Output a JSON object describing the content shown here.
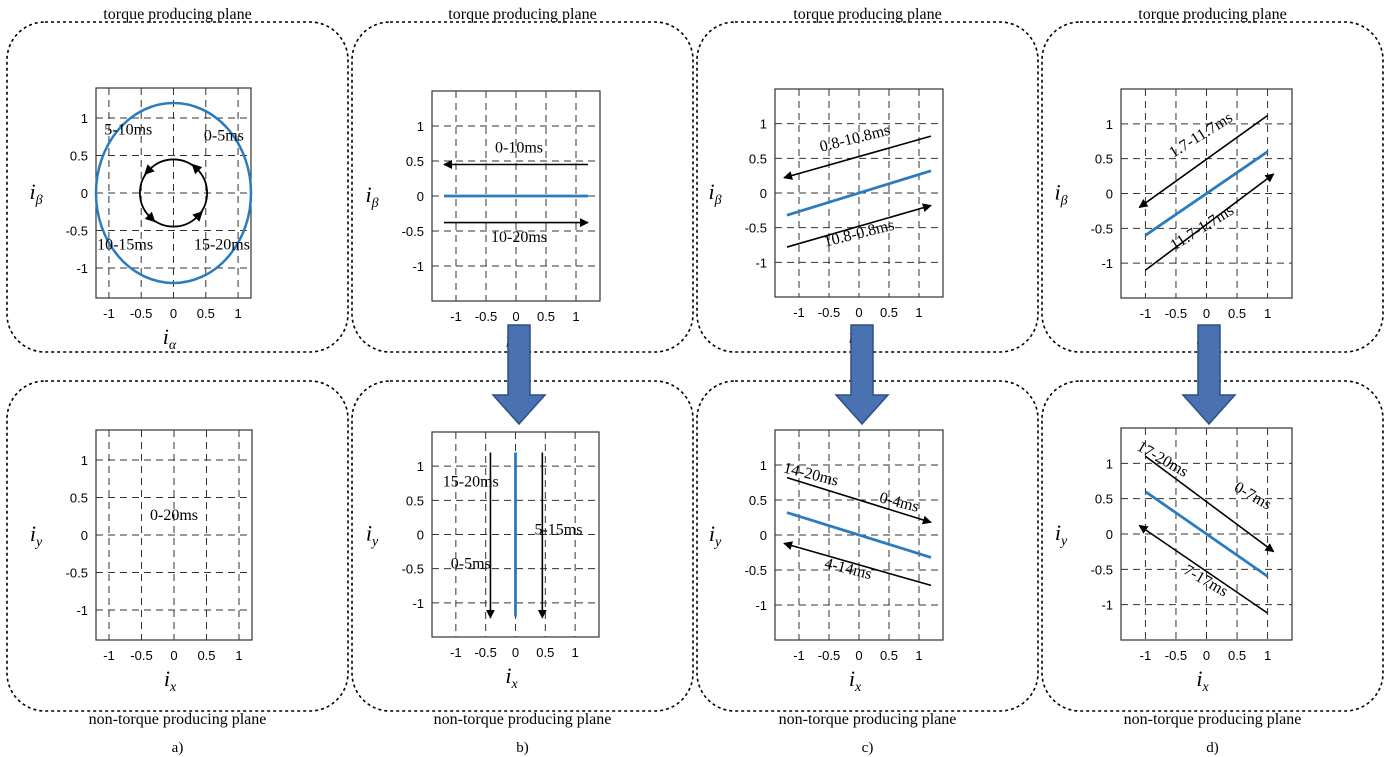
{
  "colors": {
    "trajectory": "#2b7bbf",
    "arrow": "#000000",
    "block_arrow_fill": "#4a72b0",
    "block_arrow_stroke": "#2f4f80",
    "grid": "#333333"
  },
  "chart_data": {
    "type": "scatter",
    "panels": [
      {
        "label": "a)",
        "top": {
          "title": "torque producing plane",
          "xlabel": "i",
          "xsub": "α",
          "ylabel": "i",
          "ysub": "β",
          "xlim": [
            -1.2,
            1.2
          ],
          "ylim": [
            -1.4,
            1.4
          ],
          "xticks": [
            "-1",
            "-0.5",
            "0",
            "0.5",
            "1"
          ],
          "yticks": [
            "1",
            "0.5",
            "0",
            "-0.5",
            "-1"
          ],
          "trajectory": {
            "kind": "circle",
            "center": [
              0,
              0
            ],
            "radius": 1.2
          },
          "rotation": {
            "kind": "circular_arrow",
            "center": [
              0,
              0
            ],
            "radius": 0.52
          },
          "annotations": [
            "5-10ms",
            "0-5ms",
            "10-15ms",
            "15-20ms"
          ]
        },
        "bottom": {
          "title": "non-torque producing plane",
          "xlabel": "i",
          "xsub": "x",
          "ylabel": "i",
          "ysub": "y",
          "xlim": [
            -1.2,
            1.2
          ],
          "ylim": [
            -1.4,
            1.4
          ],
          "xticks": [
            "-1",
            "-0.5",
            "0",
            "0.5",
            "1"
          ],
          "yticks": [
            "1",
            "0.5",
            "0",
            "-0.5",
            "-1"
          ],
          "trajectory": null,
          "annotations": [
            "0-20ms"
          ]
        }
      },
      {
        "label": "b)",
        "top": {
          "title": "torque producing plane",
          "xlabel": "i",
          "xsub": "α",
          "ylabel": "i",
          "ysub": "β",
          "xlim": [
            -1.4,
            1.4
          ],
          "ylim": [
            -1.5,
            1.5
          ],
          "xticks": [
            "-1",
            "-0.5",
            "0",
            "0.5",
            "1"
          ],
          "yticks": [
            "1",
            "0.5",
            "0",
            "-0.5",
            "-1"
          ],
          "trajectory": {
            "kind": "line",
            "from": [
              -1.2,
              0
            ],
            "to": [
              1.2,
              0
            ]
          },
          "arrows": [
            {
              "from": [
                1.2,
                0.45
              ],
              "to": [
                -1.2,
                0.45
              ]
            },
            {
              "from": [
                -1.2,
                -0.38
              ],
              "to": [
                1.2,
                -0.38
              ]
            }
          ],
          "annotations": [
            "0-10ms",
            "10-20ms"
          ]
        },
        "bottom": {
          "title": "non-torque producing plane",
          "xlabel": "i",
          "xsub": "x",
          "ylabel": "i",
          "ysub": "y",
          "xlim": [
            -1.4,
            1.4
          ],
          "ylim": [
            -1.5,
            1.5
          ],
          "xticks": [
            "-1",
            "-0.5",
            "0",
            "0.5",
            "1"
          ],
          "yticks": [
            "1",
            "0.5",
            "0",
            "-0.5",
            "-1"
          ],
          "trajectory": {
            "kind": "line",
            "from": [
              0,
              1.2
            ],
            "to": [
              0,
              -1.2
            ]
          },
          "arrows": [
            {
              "from": [
                -0.42,
                1.2
              ],
              "to": [
                -0.42,
                -1.22
              ]
            },
            {
              "from": [
                0.45,
                1.2
              ],
              "to": [
                0.45,
                -1.22
              ]
            }
          ],
          "annotations": [
            "15-20ms",
            "0-5ms",
            "5-15ms"
          ]
        }
      },
      {
        "label": "c)",
        "top": {
          "title": "torque producing plane",
          "xlabel": "i",
          "xsub": "α",
          "ylabel": "i",
          "ysub": "β",
          "xlim": [
            -1.4,
            1.4
          ],
          "ylim": [
            -1.5,
            1.5
          ],
          "xticks": [
            "-1",
            "-0.5",
            "0",
            "0.5",
            "1"
          ],
          "yticks": [
            "1",
            "0.5",
            "0",
            "-0.5",
            "-1"
          ],
          "trajectory": {
            "kind": "line",
            "from": [
              -1.2,
              -0.32
            ],
            "to": [
              1.2,
              0.32
            ]
          },
          "arrows": [
            {
              "from": [
                1.2,
                0.82
              ],
              "to": [
                -1.25,
                0.22
              ]
            },
            {
              "from": [
                -1.2,
                -0.78
              ],
              "to": [
                1.2,
                -0.18
              ]
            }
          ],
          "annotations": [
            "0.8-10.8ms",
            "10.8-0.8ms"
          ]
        },
        "bottom": {
          "title": "non-torque producing plane",
          "xlabel": "i",
          "xsub": "x",
          "ylabel": "i",
          "ysub": "y",
          "xlim": [
            -1.4,
            1.4
          ],
          "ylim": [
            -1.5,
            1.5
          ],
          "xticks": [
            "-1",
            "-0.5",
            "0",
            "0.5",
            "1"
          ],
          "yticks": [
            "1",
            "0.5",
            "0",
            "-0.5",
            "-1"
          ],
          "trajectory": {
            "kind": "line",
            "from": [
              -1.2,
              0.32
            ],
            "to": [
              1.2,
              -0.32
            ]
          },
          "arrows": [
            {
              "from": [
                -1.2,
                0.82
              ],
              "to": [
                1.2,
                0.18
              ]
            },
            {
              "from": [
                1.2,
                -0.72
              ],
              "to": [
                -1.25,
                -0.12
              ]
            }
          ],
          "annotations": [
            "14-20ms",
            "0-4ms",
            "4-14ms"
          ]
        }
      },
      {
        "label": "d)",
        "top": {
          "title": "torque producing plane",
          "xlabel": "i",
          "xsub": "α",
          "ylabel": "i",
          "ysub": "β",
          "xlim": [
            -1.4,
            1.4
          ],
          "ylim": [
            -1.5,
            1.5
          ],
          "xticks": [
            "-1",
            "-0.5",
            "0",
            "0.5",
            "1"
          ],
          "yticks": [
            "1",
            "0.5",
            "0",
            "-0.5",
            "-1"
          ],
          "trajectory": {
            "kind": "line",
            "from": [
              -1.0,
              -0.6
            ],
            "to": [
              1.0,
              0.6
            ]
          },
          "arrows": [
            {
              "from": [
                1.0,
                1.12
              ],
              "to": [
                -1.1,
                -0.2
              ]
            },
            {
              "from": [
                -1.0,
                -1.1
              ],
              "to": [
                1.1,
                0.28
              ]
            }
          ],
          "annotations": [
            "1.7-11.7ms",
            "11.7-1.7ms"
          ]
        },
        "bottom": {
          "title": "non-torque producing plane",
          "xlabel": "i",
          "xsub": "x",
          "ylabel": "i",
          "ysub": "y",
          "xlim": [
            -1.4,
            1.4
          ],
          "ylim": [
            -1.5,
            1.5
          ],
          "xticks": [
            "-1",
            "-0.5",
            "0",
            "0.5",
            "1"
          ],
          "yticks": [
            "1",
            "0.5",
            "0",
            "-0.5",
            "-1"
          ],
          "trajectory": {
            "kind": "line",
            "from": [
              -1.0,
              0.6
            ],
            "to": [
              1.0,
              -0.6
            ]
          },
          "arrows": [
            {
              "from": [
                -1.0,
                1.1
              ],
              "to": [
                1.1,
                -0.25
              ]
            },
            {
              "from": [
                1.0,
                -1.12
              ],
              "to": [
                -1.1,
                0.12
              ]
            }
          ],
          "annotations": [
            "17-20ms",
            "0-7ms",
            "7-17ms"
          ]
        }
      }
    ]
  }
}
